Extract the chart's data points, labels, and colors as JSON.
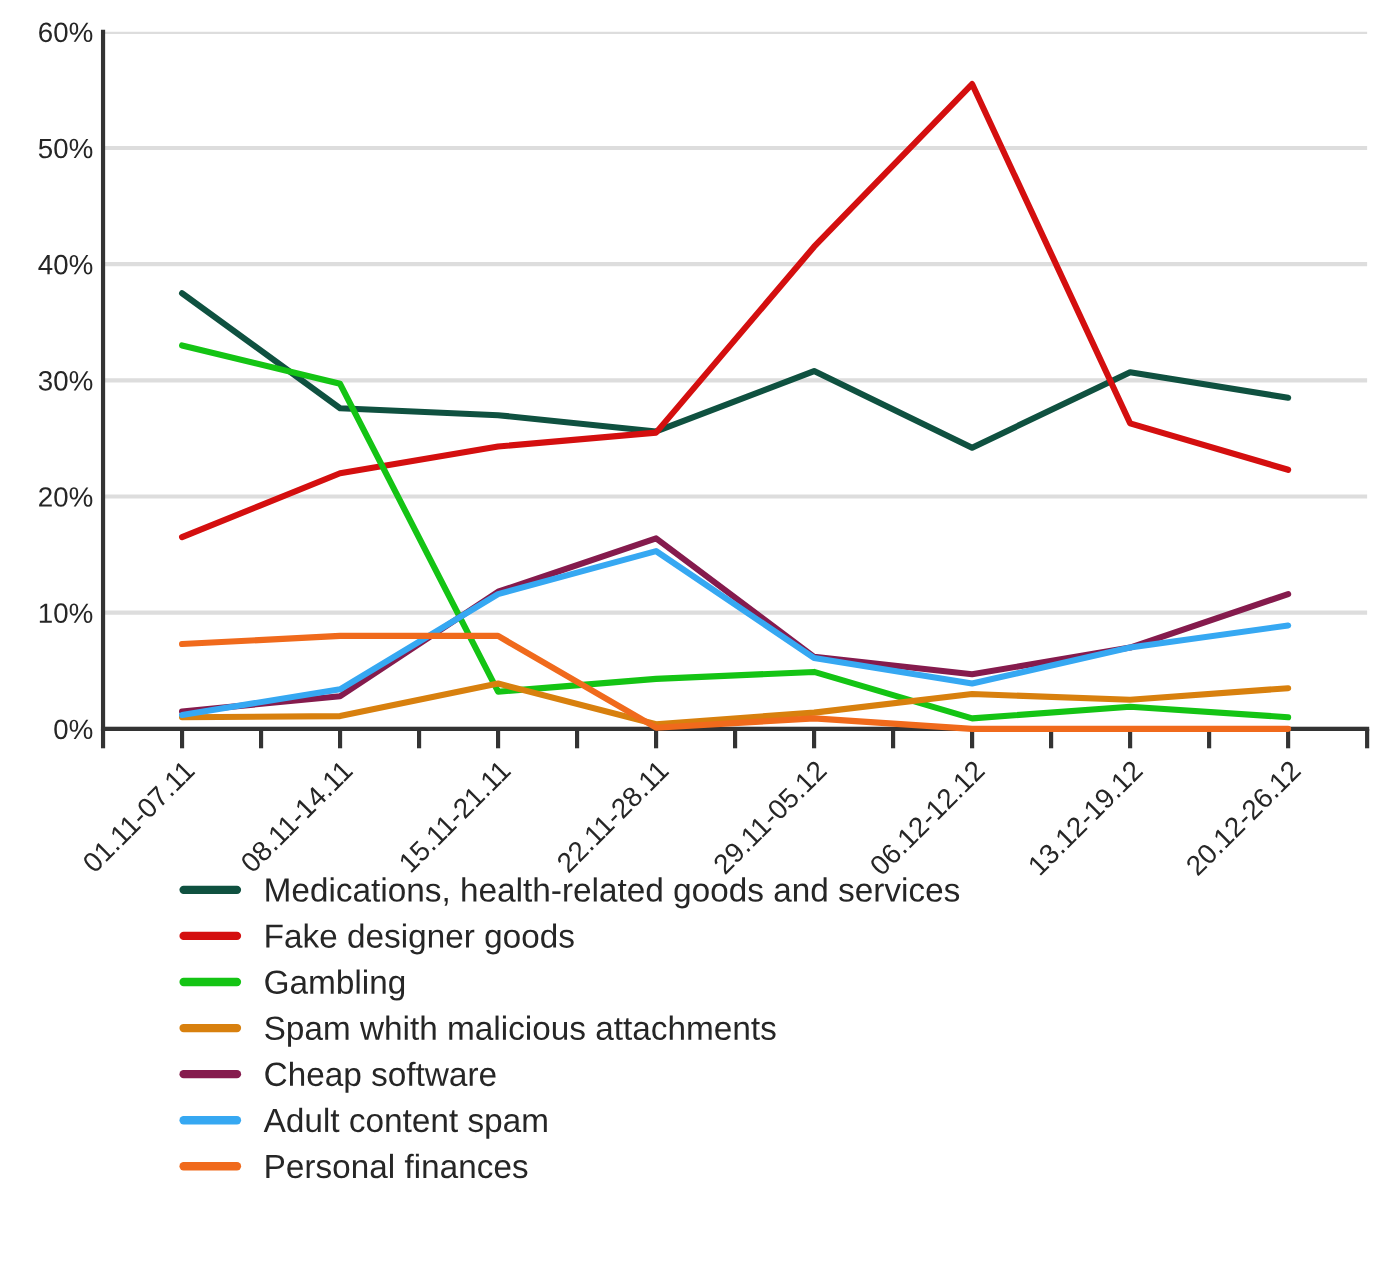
{
  "chart_data": {
    "type": "line",
    "categories": [
      "01.11-07.11",
      "08.11-14.11",
      "15.11-21.11",
      "22.11-28.11",
      "29.11-05.12",
      "06.12-12.12",
      "13.12-19.12",
      "20.12-26.12"
    ],
    "series": [
      {
        "name": "Medications, health-related goods and services",
        "color": "#0f5140",
        "values": [
          37.5,
          27.6,
          27,
          25.6,
          30.8,
          24.2,
          30.7,
          28.5
        ]
      },
      {
        "name": "Fake designer goods",
        "color": "#d40f0f",
        "values": [
          16.5,
          22,
          24.3,
          25.5,
          41.5,
          55.5,
          26.3,
          22.3
        ]
      },
      {
        "name": "Gambling",
        "color": "#14c414",
        "values": [
          33,
          29.7,
          3.2,
          4.3,
          4.9,
          0.9,
          1.9,
          1
        ]
      },
      {
        "name": "Spam whith malicious attachments",
        "color": "#d8800e",
        "values": [
          1,
          1.1,
          3.9,
          0.4,
          1.4,
          3,
          2.5,
          3.5
        ]
      },
      {
        "name": "Cheap software",
        "color": "#851b4d",
        "values": [
          1.5,
          2.8,
          11.8,
          16.4,
          6.2,
          4.7,
          7,
          11.6
        ]
      },
      {
        "name": "Adult content spam",
        "color": "#36a8f2",
        "values": [
          1.2,
          3.4,
          11.6,
          15.3,
          6.1,
          3.9,
          7,
          8.9
        ]
      },
      {
        "name": "Personal finances",
        "color": "#f06a1c",
        "values": [
          7.3,
          8,
          8,
          0.1,
          0.9,
          0,
          0,
          0
        ]
      }
    ],
    "ylim": [
      0,
      60
    ],
    "yticks": [
      {
        "value": 0,
        "label": "0%"
      },
      {
        "value": 10,
        "label": "10%"
      },
      {
        "value": 20,
        "label": "20%"
      },
      {
        "value": 30,
        "label": "30%"
      },
      {
        "value": 40,
        "label": "40%"
      },
      {
        "value": 50,
        "label": "50%"
      },
      {
        "value": 60,
        "label": "60%"
      }
    ],
    "grid": "y",
    "legend": "bottom",
    "marker": "none",
    "line_style": "solid"
  }
}
